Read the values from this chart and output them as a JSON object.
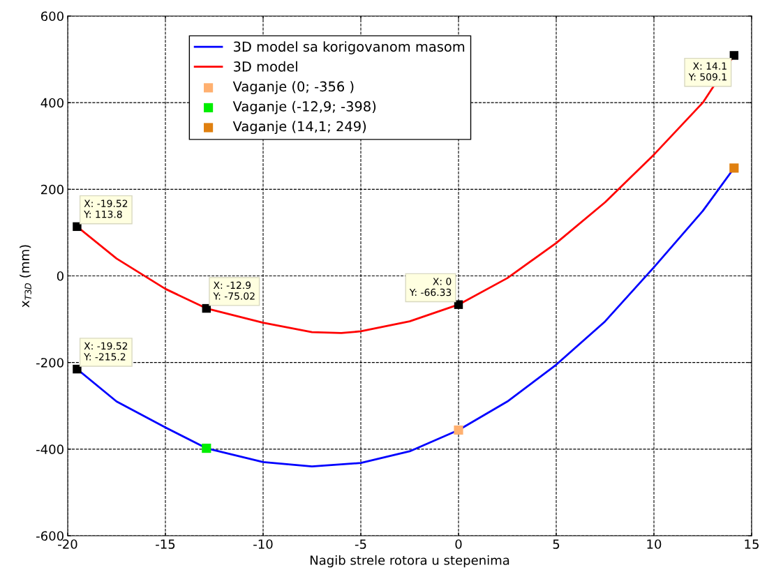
{
  "chart_data": {
    "type": "line",
    "xlabel": "Nagib strele rotora u stepenima",
    "ylabel": "x$_{T3D}$ (mm)",
    "xlim": [
      -20,
      15
    ],
    "xticks": [
      -20,
      -15,
      -10,
      -5,
      0,
      5,
      10,
      15
    ],
    "ylim": [
      -600,
      600
    ],
    "yticks": [
      -600,
      -400,
      -200,
      0,
      200,
      400,
      600
    ],
    "grid": true,
    "legend": "top",
    "line_style": "solid",
    "series": [
      {
        "name": "3D model sa korigovanom masom",
        "color": "#0000ff",
        "x": [
          -19.52,
          -17.5,
          -15,
          -12.9,
          -10,
          -7.5,
          -5,
          -2.5,
          0,
          2.5,
          5,
          7.5,
          10,
          12.5,
          14.1
        ],
        "values": [
          -215.2,
          -290,
          -350,
          -398,
          -430,
          -440,
          -432,
          -405,
          -356,
          -290,
          -205,
          -105,
          20,
          150,
          249
        ]
      },
      {
        "name": "3D model",
        "color": "#ff0000",
        "x": [
          -19.52,
          -17.5,
          -15,
          -12.9,
          -10,
          -7.5,
          -6,
          -5,
          -2.5,
          0,
          2.5,
          5,
          7.5,
          10,
          12.5,
          14.1
        ],
        "values": [
          113.8,
          40,
          -30,
          -75.02,
          -108,
          -130,
          -132,
          -128,
          -105,
          -66.33,
          -5,
          76,
          170,
          280,
          400,
          509.1
        ]
      },
      {
        "name": "Vaganje (0; -356 )",
        "type": "scatter",
        "marker": "square",
        "color": "#ffb070",
        "x": [
          0
        ],
        "values": [
          -356
        ]
      },
      {
        "name": "Vaganje (-12,9; -398)",
        "type": "scatter",
        "marker": "square",
        "color": "#00ee00",
        "x": [
          -12.9
        ],
        "values": [
          -398
        ]
      },
      {
        "name": "Vaganje (14,1; 249)",
        "type": "scatter",
        "marker": "square",
        "color": "#e08010",
        "x": [
          14.1
        ],
        "values": [
          249
        ]
      }
    ],
    "annotations": [
      {
        "text": "X: -19.52\nY: 113.8",
        "x": -19.52,
        "y": 113.8
      },
      {
        "text": "X: -12.9\nY: -75.02",
        "x": -12.9,
        "y": -75.02
      },
      {
        "text": "X: 0\nY: -66.33",
        "x": 0,
        "y": -66.33
      },
      {
        "text": "X: 14.1\nY: 509.1",
        "x": 14.1,
        "y": 509.1
      },
      {
        "text": "X: -19.52\nY: -215.2",
        "x": -19.52,
        "y": -215.2
      }
    ]
  }
}
